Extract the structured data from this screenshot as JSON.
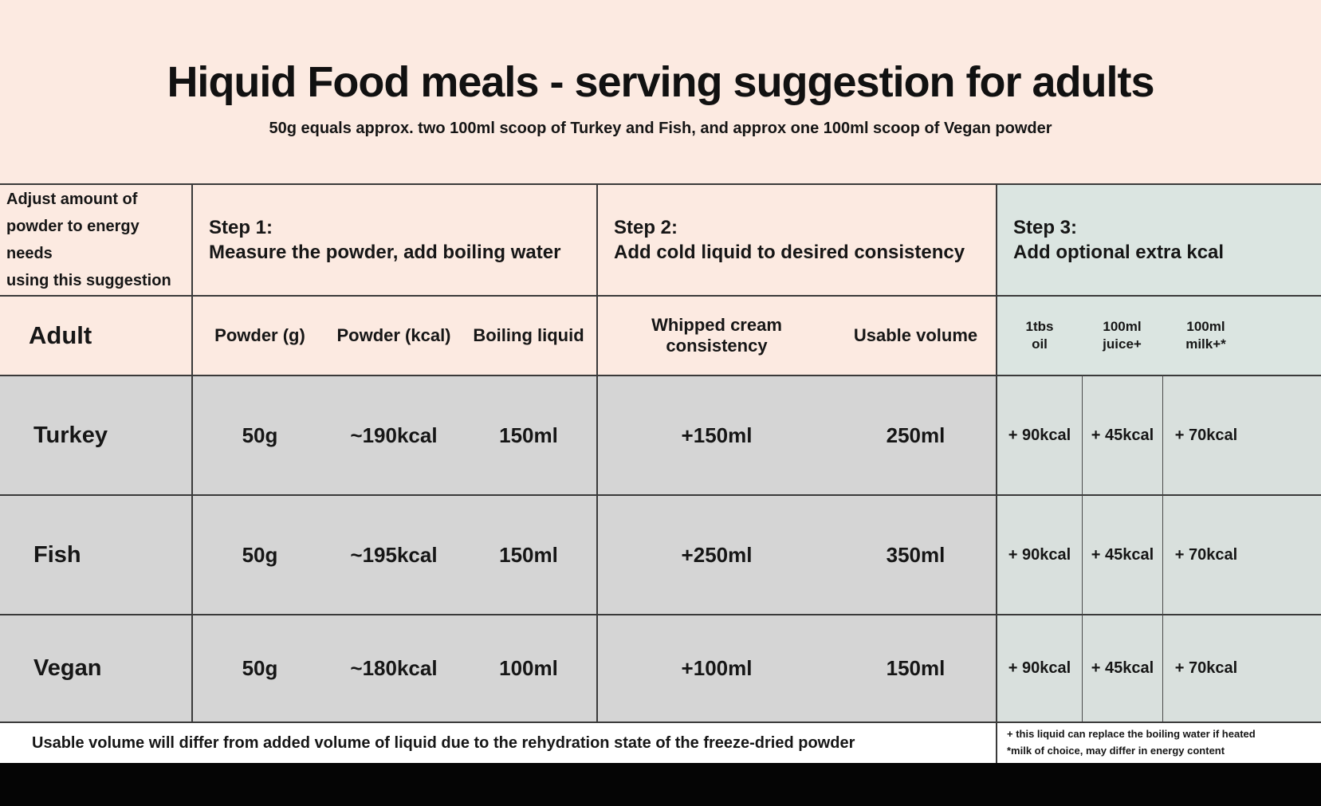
{
  "header": {
    "title": "Hiquid Food meals - serving suggestion for adults",
    "subtitle": "50g equals approx. two 100ml scoop of Turkey and Fish, and approx one 100ml scoop of Vegan powder"
  },
  "table": {
    "corner": "Adjust amount of\npowder to energy needs\nusing this suggestion",
    "adult_label": "Adult",
    "step1": {
      "title": "Step 1:",
      "desc": "Measure the powder, add boiling water",
      "col1": "Powder (g)",
      "col2": "Powder (kcal)",
      "col3": "Boiling liquid"
    },
    "step2": {
      "title": "Step 2:",
      "desc": "Add cold liquid to desired consistency",
      "col1": "Whipped cream consistency",
      "col2": "Usable volume"
    },
    "step3": {
      "title": "Step 3:",
      "desc": "Add optional extra kcal",
      "col1": "1tbs\noil",
      "col2": "100ml\njuice+",
      "col3": "100ml\nmilk+*"
    },
    "rows": [
      {
        "label": "Turkey",
        "powder_g": "50g",
        "powder_kcal": "~190kcal",
        "boiling": "150ml",
        "whipped": "+150ml",
        "usable": "250ml",
        "oil": "+ 90kcal",
        "juice": "+ 45kcal",
        "milk": "+ 70kcal"
      },
      {
        "label": "Fish",
        "powder_g": "50g",
        "powder_kcal": "~195kcal",
        "boiling": "150ml",
        "whipped": "+250ml",
        "usable": "350ml",
        "oil": "+ 90kcal",
        "juice": "+ 45kcal",
        "milk": "+ 70kcal"
      },
      {
        "label": "Vegan",
        "powder_g": "50g",
        "powder_kcal": "~180kcal",
        "boiling": "100ml",
        "whipped": "+100ml",
        "usable": "150ml",
        "oil": "+ 90kcal",
        "juice": "+ 45kcal",
        "milk": "+ 70kcal"
      }
    ]
  },
  "footer": {
    "note": "Usable volume will differ from added volume of liquid due to the rehydration state of the freeze-dried powder",
    "footnote_line1": "+ this liquid can replace the boiling water if heated",
    "footnote_line2": "*milk of choice, may differ in energy content"
  },
  "colors": {
    "background_pink": "#fceae1",
    "step3_mint": "#dbe5e1",
    "row_gray": "#d5d5d5",
    "step3_row_graymint": "#d9e0dd",
    "footer_white": "#ffffff",
    "line_dark": "#3a3a3a",
    "bottom_bar_black": "#050505"
  },
  "chart_data": {
    "type": "table",
    "title": "Hiquid Food meals - serving suggestion for adults",
    "subtitle": "50g equals approx. two 100ml scoop of Turkey and Fish, and approx one 100ml scoop of Vegan powder",
    "column_groups": [
      "Adjust amount of powder to energy needs using this suggestion",
      "Step 1: Measure the powder, add boiling water",
      "Step 2: Add cold liquid to desired consistency",
      "Step 3: Add optional extra kcal"
    ],
    "columns": [
      "Adult",
      "Powder (g)",
      "Powder (kcal)",
      "Boiling liquid",
      "Whipped cream consistency",
      "Usable volume",
      "1tbs oil",
      "100ml juice+",
      "100ml milk+*"
    ],
    "rows": [
      [
        "Turkey",
        "50g",
        "~190kcal",
        "150ml",
        "+150ml",
        "250ml",
        "+ 90kcal",
        "+ 45kcal",
        "+ 70kcal"
      ],
      [
        "Fish",
        "50g",
        "~195kcal",
        "150ml",
        "+250ml",
        "350ml",
        "+ 90kcal",
        "+ 45kcal",
        "+ 70kcal"
      ],
      [
        "Vegan",
        "50g",
        "~180kcal",
        "100ml",
        "+100ml",
        "150ml",
        "+ 90kcal",
        "+ 45kcal",
        "+ 70kcal"
      ]
    ],
    "notes": [
      "Usable volume will differ from added volume of liquid due to the rehydration state of the freeze-dried powder",
      "+ this liquid can replace the boiling water if heated",
      "*milk of choice, may differ in energy content"
    ]
  }
}
